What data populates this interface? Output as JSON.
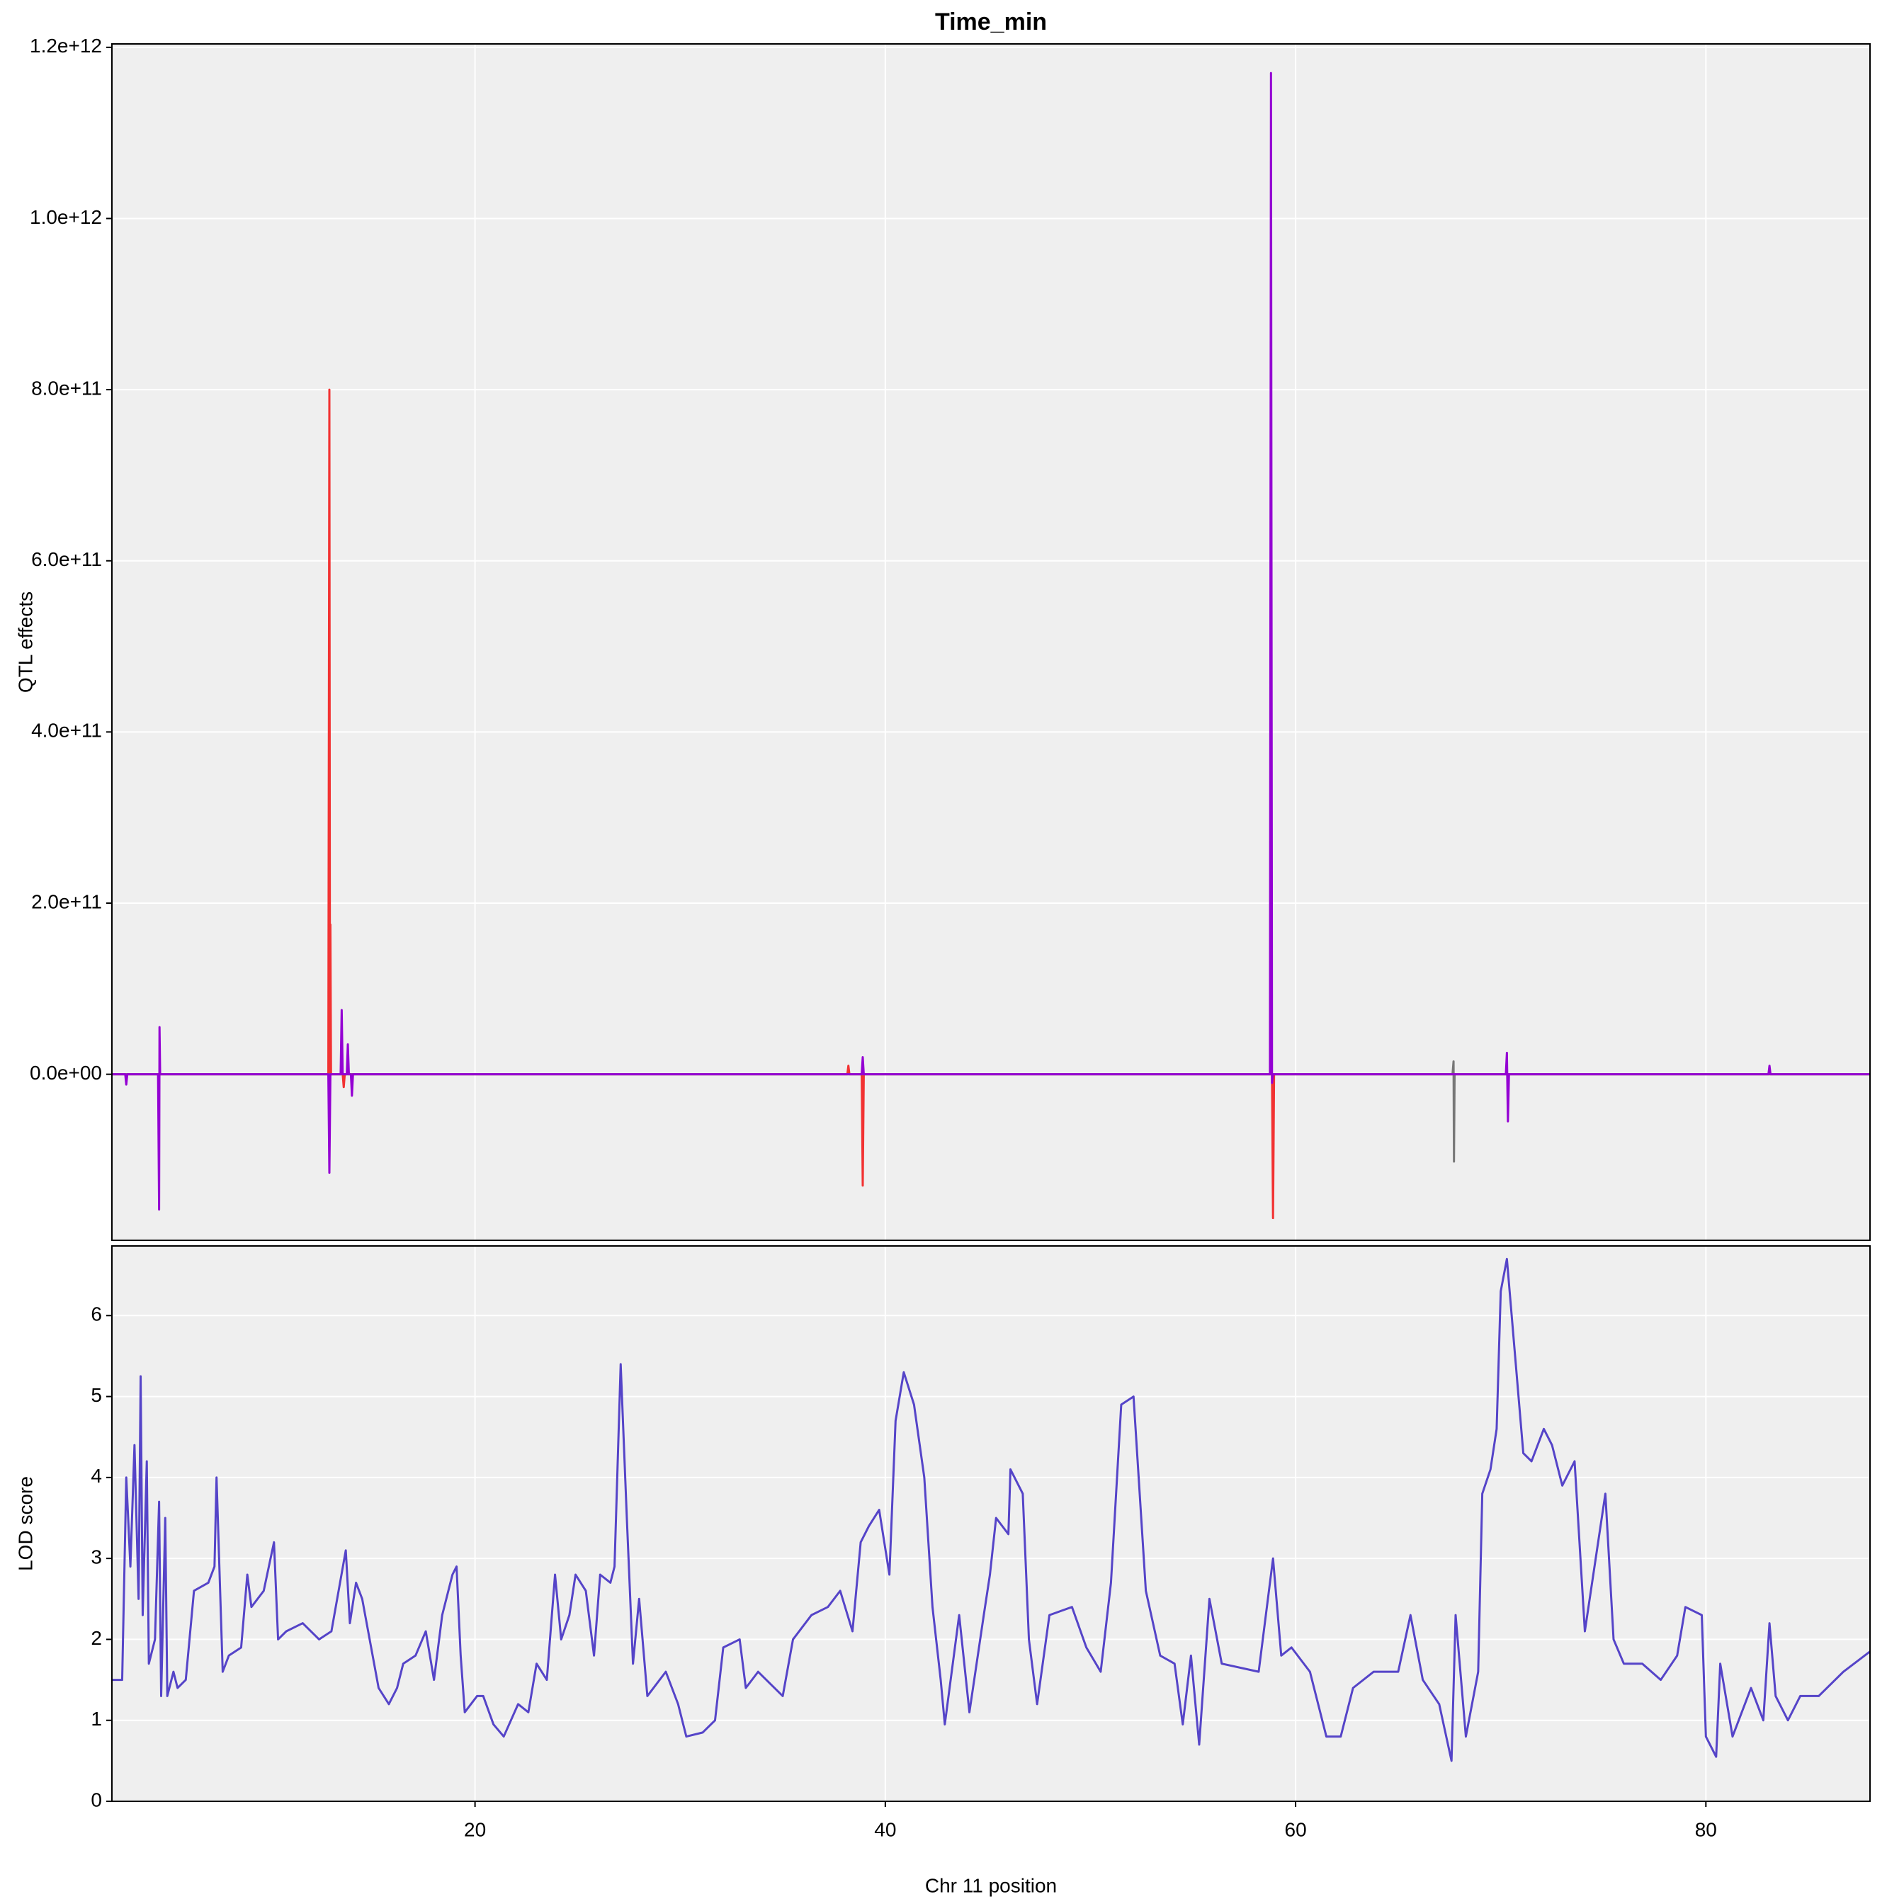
{
  "chart_data": [
    {
      "type": "line",
      "title": "Time_min",
      "ylabel": "QTL effects",
      "xlim": [
        2.3,
        88.0
      ],
      "ylim": [
        -194000000000,
        1204000000000
      ],
      "yticks": [
        {
          "value": 0,
          "label": "0.0e+00"
        },
        {
          "value": 200000000000,
          "label": "2.0e+11"
        },
        {
          "value": 400000000000,
          "label": "4.0e+11"
        },
        {
          "value": 600000000000,
          "label": "6.0e+11"
        },
        {
          "value": 800000000000,
          "label": "8.0e+11"
        },
        {
          "value": 1000000000000,
          "label": "1.0e+12"
        },
        {
          "value": 1200000000000,
          "label": "1.2e+12"
        }
      ],
      "grid": true,
      "series": [
        {
          "color": "#f23232",
          "x": [
            2.3,
            12.85,
            12.9,
            12.93,
            12.95,
            12.98,
            13.55,
            13.6,
            13.65,
            38.15,
            38.2,
            38.25,
            38.85,
            38.9,
            38.95,
            58.85,
            58.9,
            58.95,
            88.0
          ],
          "values": [
            0,
            0,
            800000000000,
            0,
            175000000000,
            0,
            0,
            -15000000000,
            0,
            0,
            10000000000,
            0,
            0,
            -130000000000,
            0,
            0,
            -168000000000,
            0,
            0
          ]
        },
        {
          "color": "#777777",
          "x": [
            2.3,
            67.65,
            67.7,
            67.72,
            67.75,
            88.0
          ],
          "values": [
            0,
            0,
            15000000000,
            -102000000000,
            0,
            0
          ]
        },
        {
          "color": "#9400d3",
          "x": [
            2.3,
            2.95,
            3.0,
            3.05,
            4.55,
            4.6,
            4.62,
            4.65,
            12.85,
            12.9,
            12.95,
            13.45,
            13.5,
            13.55,
            13.75,
            13.8,
            13.85,
            13.95,
            14.0,
            14.05,
            38.85,
            38.9,
            38.95,
            58.75,
            58.8,
            58.85,
            58.9,
            70.25,
            70.3,
            70.35,
            70.4,
            83.05,
            83.1,
            83.15,
            88.0
          ],
          "values": [
            0,
            0,
            -12000000000,
            0,
            0,
            -158000000000,
            55000000000,
            0,
            0,
            -115000000000,
            0,
            0,
            75000000000,
            0,
            0,
            35000000000,
            0,
            0,
            -25000000000,
            0,
            0,
            20000000000,
            0,
            0,
            1170000000000,
            -10000000000,
            0,
            0,
            25000000000,
            -55000000000,
            0,
            0,
            10000000000,
            0,
            0
          ]
        }
      ]
    },
    {
      "type": "line",
      "ylabel": "LOD score",
      "xlabel": "Chr 11 position",
      "xlim": [
        2.3,
        88.0
      ],
      "ylim": [
        0,
        6.86
      ],
      "xticks": [
        20,
        40,
        60,
        80
      ],
      "yticks": [
        0,
        1,
        2,
        3,
        4,
        5,
        6
      ],
      "grid": true,
      "color": "#5544c8",
      "x": [
        2.3,
        2.8,
        3.0,
        3.2,
        3.4,
        3.6,
        3.7,
        3.8,
        4.0,
        4.1,
        4.4,
        4.6,
        4.7,
        4.9,
        5.0,
        5.3,
        5.5,
        5.9,
        6.3,
        7.0,
        7.3,
        7.4,
        7.7,
        8.0,
        8.6,
        8.9,
        9.1,
        9.7,
        10.2,
        10.4,
        10.8,
        11.6,
        12.4,
        13.0,
        13.7,
        13.9,
        14.2,
        14.5,
        15.3,
        15.8,
        16.2,
        16.5,
        17.1,
        17.6,
        18.0,
        18.4,
        18.9,
        19.1,
        19.3,
        19.5,
        20.1,
        20.4,
        20.9,
        21.4,
        22.1,
        22.6,
        23.0,
        23.5,
        23.9,
        24.2,
        24.6,
        24.9,
        25.4,
        25.8,
        26.1,
        26.6,
        26.8,
        27.1,
        27.4,
        27.7,
        28.0,
        28.4,
        29.3,
        29.9,
        30.3,
        31.1,
        31.7,
        32.1,
        32.9,
        33.2,
        33.8,
        35.0,
        35.5,
        36.4,
        37.2,
        37.8,
        38.4,
        38.8,
        39.2,
        39.7,
        40.2,
        40.5,
        40.9,
        41.4,
        41.9,
        42.3,
        42.7,
        42.9,
        43.6,
        44.1,
        44.8,
        45.1,
        45.4,
        46.0,
        46.1,
        46.7,
        47.0,
        47.4,
        48.0,
        49.1,
        49.8,
        50.5,
        51.0,
        51.5,
        52.1,
        52.7,
        53.4,
        54.1,
        54.5,
        54.9,
        55.3,
        55.8,
        56.4,
        58.2,
        58.9,
        59.3,
        59.8,
        60.7,
        61.1,
        61.5,
        62.2,
        62.8,
        63.8,
        65.0,
        65.6,
        66.2,
        67.0,
        67.6,
        67.8,
        68.3,
        68.9,
        69.1,
        69.5,
        69.8,
        70.0,
        70.3,
        70.7,
        71.1,
        71.5,
        72.1,
        72.5,
        73.0,
        73.6,
        74.1,
        75.1,
        75.5,
        76.0,
        76.9,
        77.8,
        78.6,
        79.0,
        79.8,
        80.0,
        80.5,
        80.7,
        81.3,
        82.2,
        82.8,
        83.1,
        83.4,
        84.0,
        84.6,
        85.5,
        86.7,
        88.0
      ],
      "values": [
        1.5,
        1.5,
        4.0,
        2.9,
        4.4,
        2.5,
        5.25,
        2.3,
        4.2,
        1.7,
        2.0,
        3.7,
        1.3,
        3.5,
        1.3,
        1.6,
        1.4,
        1.5,
        2.6,
        2.7,
        2.9,
        4.0,
        1.6,
        1.8,
        1.9,
        2.8,
        2.4,
        2.6,
        3.2,
        2.0,
        2.1,
        2.2,
        2.0,
        2.1,
        3.1,
        2.2,
        2.7,
        2.5,
        1.4,
        1.2,
        1.4,
        1.7,
        1.8,
        2.1,
        1.5,
        2.3,
        2.8,
        2.9,
        1.8,
        1.1,
        1.3,
        1.3,
        0.95,
        0.8,
        1.2,
        1.1,
        1.7,
        1.5,
        2.8,
        2.0,
        2.3,
        2.8,
        2.6,
        1.8,
        2.8,
        2.7,
        2.9,
        5.4,
        3.5,
        1.7,
        2.5,
        1.3,
        1.6,
        1.2,
        0.8,
        0.85,
        1.0,
        1.9,
        2.0,
        1.4,
        1.6,
        1.3,
        2.0,
        2.3,
        2.4,
        2.6,
        2.1,
        3.2,
        3.4,
        3.6,
        2.8,
        4.7,
        5.3,
        4.9,
        4.0,
        2.4,
        1.5,
        0.95,
        2.3,
        1.1,
        2.3,
        2.8,
        3.5,
        3.3,
        4.1,
        3.8,
        2.0,
        1.2,
        2.3,
        2.4,
        1.9,
        1.6,
        2.7,
        4.9,
        5.0,
        2.6,
        1.8,
        1.7,
        0.95,
        1.8,
        0.7,
        2.5,
        1.7,
        1.6,
        3.0,
        1.8,
        1.9,
        1.6,
        1.2,
        0.8,
        0.8,
        1.4,
        1.6,
        1.6,
        2.3,
        1.5,
        1.2,
        0.5,
        2.3,
        0.8,
        1.6,
        3.8,
        4.1,
        4.6,
        6.3,
        6.7,
        5.5,
        4.3,
        4.2,
        4.6,
        4.4,
        3.9,
        4.2,
        2.1,
        3.8,
        2.0,
        1.7,
        1.7,
        1.5,
        1.8,
        2.4,
        2.3,
        0.8,
        0.55,
        1.7,
        0.8,
        1.4,
        1.0,
        2.2,
        1.3,
        1.0,
        1.3,
        1.3,
        1.6,
        1.85
      ]
    }
  ]
}
